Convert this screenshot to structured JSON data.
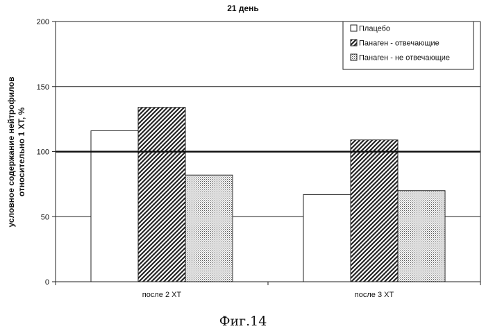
{
  "figure_caption": "Фиг.14",
  "chart_data": {
    "type": "bar",
    "title": "21 день",
    "ylabel_line1": "условное содержание нейтрофилов",
    "ylabel_line2": "относительно 1 ХТ, %",
    "xlabel": "",
    "ylim": [
      0,
      200
    ],
    "yticks": [
      0,
      50,
      100,
      150,
      200
    ],
    "reference_line": 100,
    "grid": true,
    "legend_position": "top-right",
    "categories": [
      "после 2 ХТ",
      "после 3 ХТ"
    ],
    "series": [
      {
        "name": "Плацебо",
        "values": [
          116,
          67
        ],
        "pattern": "white"
      },
      {
        "name": "Панаген - отвечающие",
        "values": [
          134,
          109
        ],
        "pattern": "hatch"
      },
      {
        "name": "Панаген - не отвечающие",
        "values": [
          82,
          70
        ],
        "pattern": "dots"
      }
    ]
  }
}
